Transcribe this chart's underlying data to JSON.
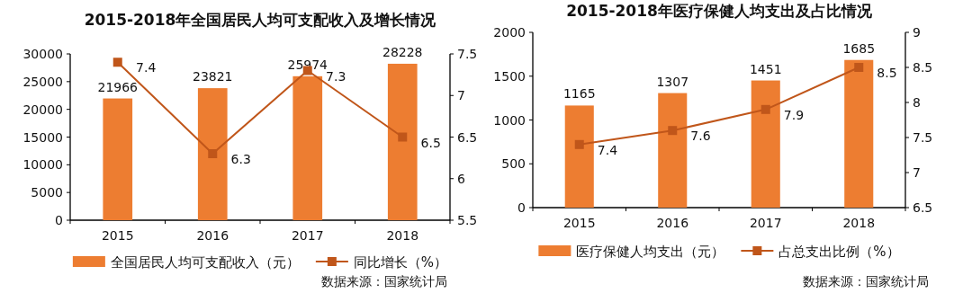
{
  "chart_data": [
    {
      "type": "bar",
      "title": "2015-2018年全国居民人均可支配收入及增长情况",
      "categories": [
        "2015",
        "2016",
        "2017",
        "2018"
      ],
      "series": [
        {
          "name": "全国居民人均可支配收入（元）",
          "color": "#ed7d31",
          "values": [
            21966,
            23821,
            25974,
            28228
          ]
        },
        {
          "name": "同比增长（%）",
          "type": "line",
          "axis": "y2",
          "color": "#c0561a",
          "values": [
            7.4,
            6.3,
            7.3,
            6.5
          ]
        }
      ],
      "ylim": [
        0,
        30000
      ],
      "yticks": [
        0,
        5000,
        10000,
        15000,
        20000,
        25000,
        30000
      ],
      "y2lim": [
        5.5,
        7.5
      ],
      "y2ticks": [
        5.5,
        6,
        6.5,
        7,
        7.5
      ],
      "data_labels": true,
      "legend": "bottom",
      "marker": "square",
      "grid": false,
      "annotations": [
        "数据来源：国家统计局"
      ]
    },
    {
      "type": "bar",
      "title": "2015-2018年医疗保健人均支出及占比情况",
      "categories": [
        "2015",
        "2016",
        "2017",
        "2018"
      ],
      "series": [
        {
          "name": "医疗保健人均支出（元）",
          "color": "#ed7d31",
          "values": [
            1165,
            1307,
            1451,
            1685
          ]
        },
        {
          "name": "占总支出比例（%）",
          "type": "line",
          "axis": "y2",
          "color": "#c0561a",
          "values": [
            7.4,
            7.6,
            7.9,
            8.5
          ]
        }
      ],
      "ylim": [
        0,
        2000
      ],
      "yticks": [
        0,
        500,
        1000,
        1500,
        2000
      ],
      "y2lim": [
        6.5,
        9
      ],
      "y2ticks": [
        6.5,
        7,
        7.5,
        8,
        8.5,
        9
      ],
      "data_labels": true,
      "legend": "bottom",
      "marker": "square",
      "grid": false,
      "annotations": [
        "数据来源：国家统计局"
      ]
    }
  ]
}
